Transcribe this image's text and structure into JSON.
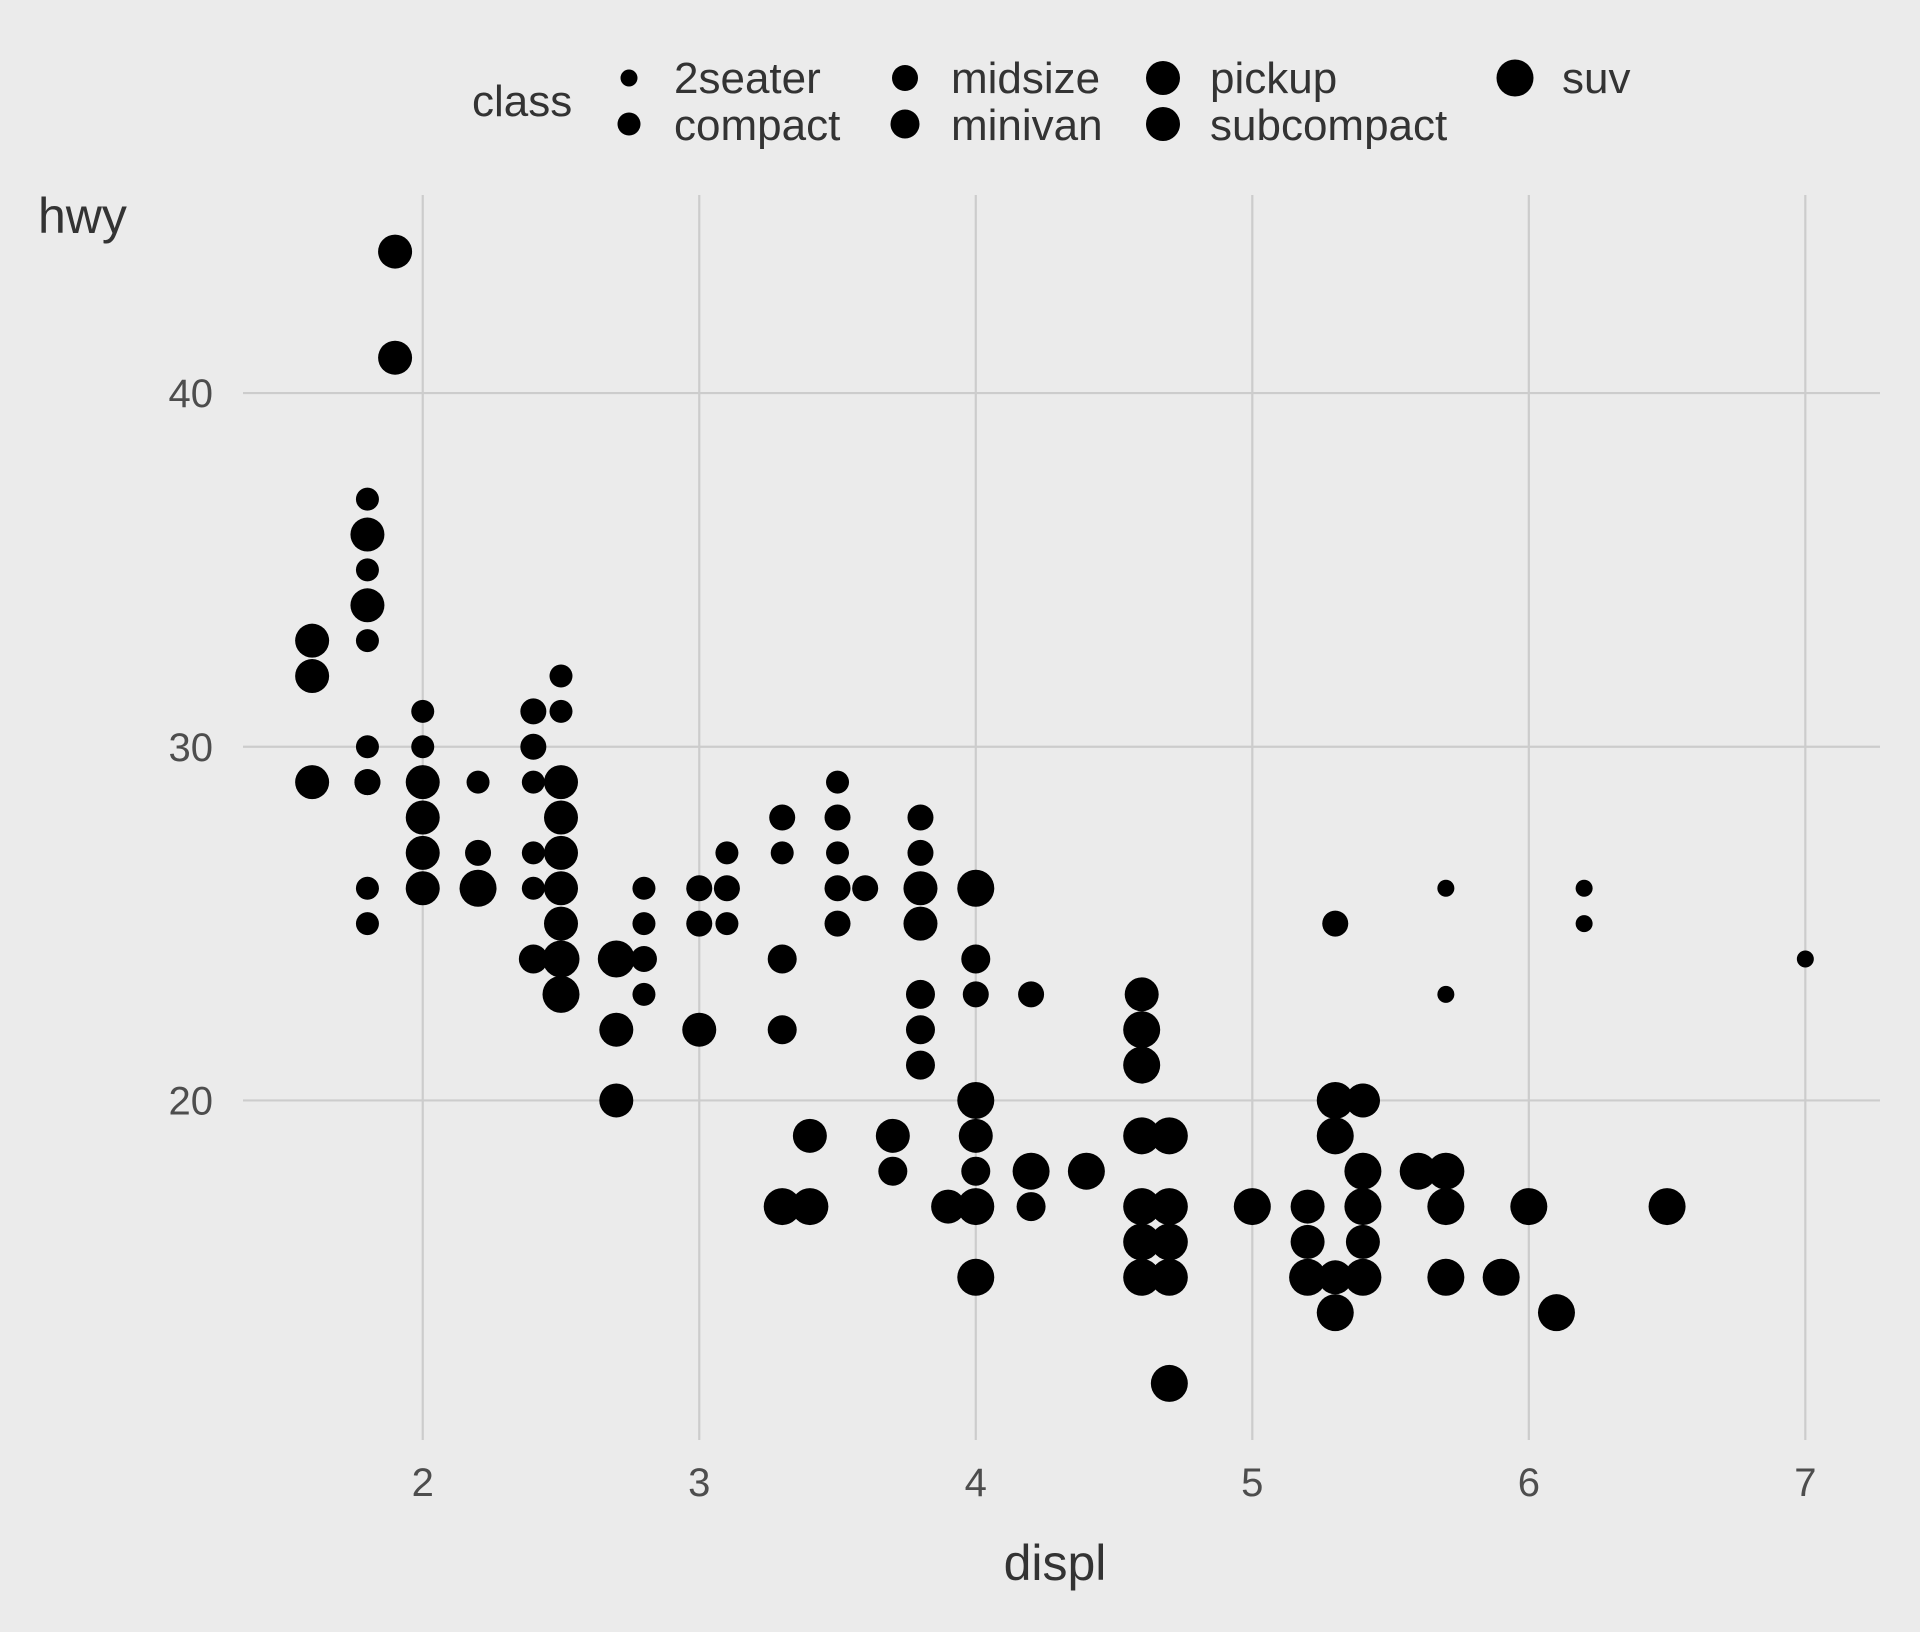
{
  "chart_data": {
    "type": "scatter",
    "xlabel": "displ",
    "ylabel": "hwy",
    "xlim": [
      1.35,
      7.27
    ],
    "ylim": [
      10.4,
      45.6
    ],
    "x_ticks": [
      2,
      3,
      4,
      5,
      6,
      7
    ],
    "y_ticks": [
      20,
      30,
      40
    ],
    "x_tick_labels": [
      "2",
      "3",
      "4",
      "5",
      "6",
      "7"
    ],
    "y_tick_labels": [
      "20",
      "30",
      "40"
    ],
    "grid": true,
    "legend": {
      "title": "class",
      "position": "top",
      "size_mapped": true,
      "entries": [
        "2seater",
        "compact",
        "midsize",
        "minivan",
        "pickup",
        "subcompact",
        "suv"
      ]
    },
    "colors": {
      "background": "#ebebeb",
      "grid": "#cccccc",
      "points": "#000000",
      "text": "#333333",
      "tick_text": "#4d4d4d"
    },
    "series": [
      {
        "name": "2seater",
        "x": [
          5.7,
          5.7,
          6.2,
          6.2,
          7.0
        ],
        "y": [
          26,
          23,
          26,
          25,
          24
        ]
      },
      {
        "name": "compact",
        "x": [
          1.8,
          1.8,
          1.8,
          1.8,
          1.8,
          1.8,
          2.0,
          2.0,
          2.2,
          2.4,
          2.4,
          2.4,
          2.5,
          2.5,
          2.8,
          2.8,
          2.8,
          2.8,
          3.1,
          3.1,
          3.3,
          3.5,
          3.5
        ],
        "y": [
          37,
          35,
          33,
          30,
          26,
          25,
          31,
          30,
          29,
          29,
          27,
          26,
          32,
          31,
          26,
          25,
          24,
          23,
          27,
          25,
          27,
          29,
          27
        ]
      },
      {
        "name": "midsize",
        "x": [
          1.8,
          1.8,
          2.2,
          2.4,
          2.4,
          2.5,
          2.8,
          3.0,
          3.0,
          3.1,
          3.3,
          3.3,
          3.5,
          3.5,
          3.5,
          3.6,
          3.8,
          3.8,
          3.8,
          4.0,
          4.2,
          5.3,
          2.4
        ],
        "y": [
          29,
          29,
          27,
          31,
          30,
          29,
          24,
          26,
          25,
          26,
          28,
          24,
          28,
          26,
          25,
          26,
          28,
          27,
          26,
          23,
          23,
          25,
          24
        ]
      },
      {
        "name": "minivan",
        "x": [
          3.3,
          3.3,
          3.8,
          3.8,
          3.8,
          3.8,
          4.0,
          2.4,
          3.7,
          4.0,
          4.2
        ],
        "y": [
          22,
          24,
          23,
          22,
          21,
          25,
          24,
          24,
          18,
          18,
          17
        ]
      },
      {
        "name": "pickup",
        "x": [
          2.7,
          2.7,
          3.4,
          3.7,
          3.9,
          4.0,
          4.0,
          4.0,
          4.7,
          4.7,
          4.7,
          4.7,
          5.2,
          5.2,
          5.3,
          5.4,
          5.4,
          5.7,
          2.7,
          3.4,
          4.6,
          4.6,
          5.4
        ],
        "y": [
          20,
          22,
          19,
          19,
          17,
          20,
          19,
          17,
          17,
          16,
          15,
          19,
          16,
          17,
          15,
          15,
          16,
          17,
          24,
          17,
          17,
          19,
          20
        ]
      },
      {
        "name": "subcompact",
        "x": [
          1.6,
          1.6,
          1.6,
          1.9,
          1.9,
          1.8,
          1.8,
          2.0,
          2.0,
          2.0,
          2.0,
          2.5,
          2.5,
          2.5,
          2.5,
          2.5,
          3.0,
          3.8,
          3.8,
          4.6,
          5.4
        ],
        "y": [
          33,
          32,
          29,
          44,
          41,
          36,
          34,
          29,
          28,
          27,
          26,
          29,
          28,
          27,
          26,
          25,
          22,
          26,
          25,
          23,
          20
        ]
      },
      {
        "name": "suv",
        "x": [
          2.2,
          2.5,
          2.5,
          2.7,
          3.4,
          3.3,
          4.0,
          4.0,
          4.0,
          4.2,
          4.4,
          4.6,
          4.6,
          4.6,
          4.6,
          4.6,
          4.6,
          4.7,
          4.7,
          4.7,
          4.7,
          4.7,
          5.0,
          5.2,
          5.3,
          5.3,
          5.4,
          5.4,
          5.4,
          5.6,
          5.7,
          5.7,
          5.7,
          5.9,
          6.0,
          6.1,
          6.5,
          4.0,
          5.3
        ],
        "y": [
          26,
          24,
          23,
          24,
          17,
          17,
          26,
          20,
          15,
          18,
          18,
          22,
          21,
          19,
          17,
          16,
          15,
          19,
          17,
          16,
          15,
          12,
          17,
          15,
          20,
          19,
          18,
          17,
          15,
          18,
          18,
          17,
          15,
          15,
          17,
          14,
          17,
          17,
          14
        ]
      }
    ]
  }
}
